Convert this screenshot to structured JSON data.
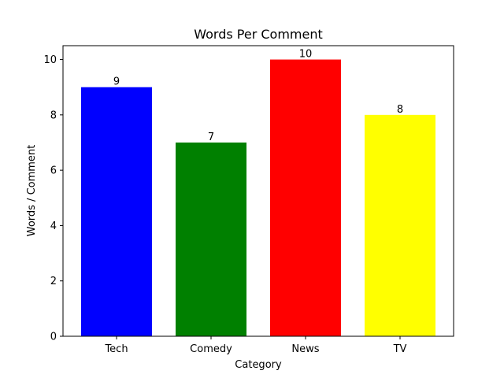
{
  "chart_data": {
    "type": "bar",
    "title": "Words Per Comment",
    "xlabel": "Category",
    "ylabel": "Words / Comment",
    "categories": [
      "Tech",
      "Comedy",
      "News",
      "TV"
    ],
    "values": [
      9,
      7,
      10,
      8
    ],
    "colors": [
      "#0000ff",
      "#008000",
      "#ff0000",
      "#ffff00"
    ],
    "ylim": [
      0,
      10.5
    ],
    "yticks": [
      0,
      2,
      4,
      6,
      8,
      10
    ],
    "grid": false,
    "data_labels": true
  }
}
